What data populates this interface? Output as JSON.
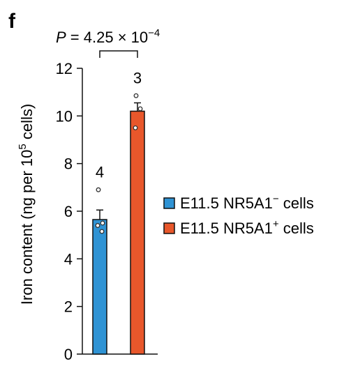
{
  "panel_label": "f",
  "chart_data": {
    "type": "bar",
    "ylabel": "Iron content (ng per 10⁵ cells)",
    "ylabel_parts": {
      "before": "Iron content (ng per 10",
      "sup": "5",
      "after": " cells)"
    },
    "ylim": [
      0,
      12
    ],
    "yticks": [
      0,
      2,
      4,
      6,
      8,
      10,
      12
    ],
    "categories": [
      "E11.5 NR5A1⁻ cells",
      "E11.5 NR5A1⁺ cells"
    ],
    "series": [
      {
        "name": "E11.5 NR5A1⁻ cells",
        "legend_parts": {
          "text": "E11.5 NR5A1",
          "sup": "−",
          "after": " cells"
        },
        "color": "#2f93d4",
        "value": 5.65,
        "error": 0.4,
        "n": "4",
        "points": [
          6.9,
          5.5,
          5.4,
          5.15
        ]
      },
      {
        "name": "E11.5 NR5A1⁺ cells",
        "legend_parts": {
          "text": "E11.5 NR5A1",
          "sup": "+",
          "after": " cells"
        },
        "color": "#e8572b",
        "value": 10.2,
        "error": 0.35,
        "n": "3",
        "points": [
          10.85,
          10.3,
          9.5
        ]
      }
    ],
    "significance": {
      "label_prefix": "P",
      "label_value": " = 4.25 × 10",
      "label_exp": "−4"
    },
    "legend_position": "right"
  }
}
